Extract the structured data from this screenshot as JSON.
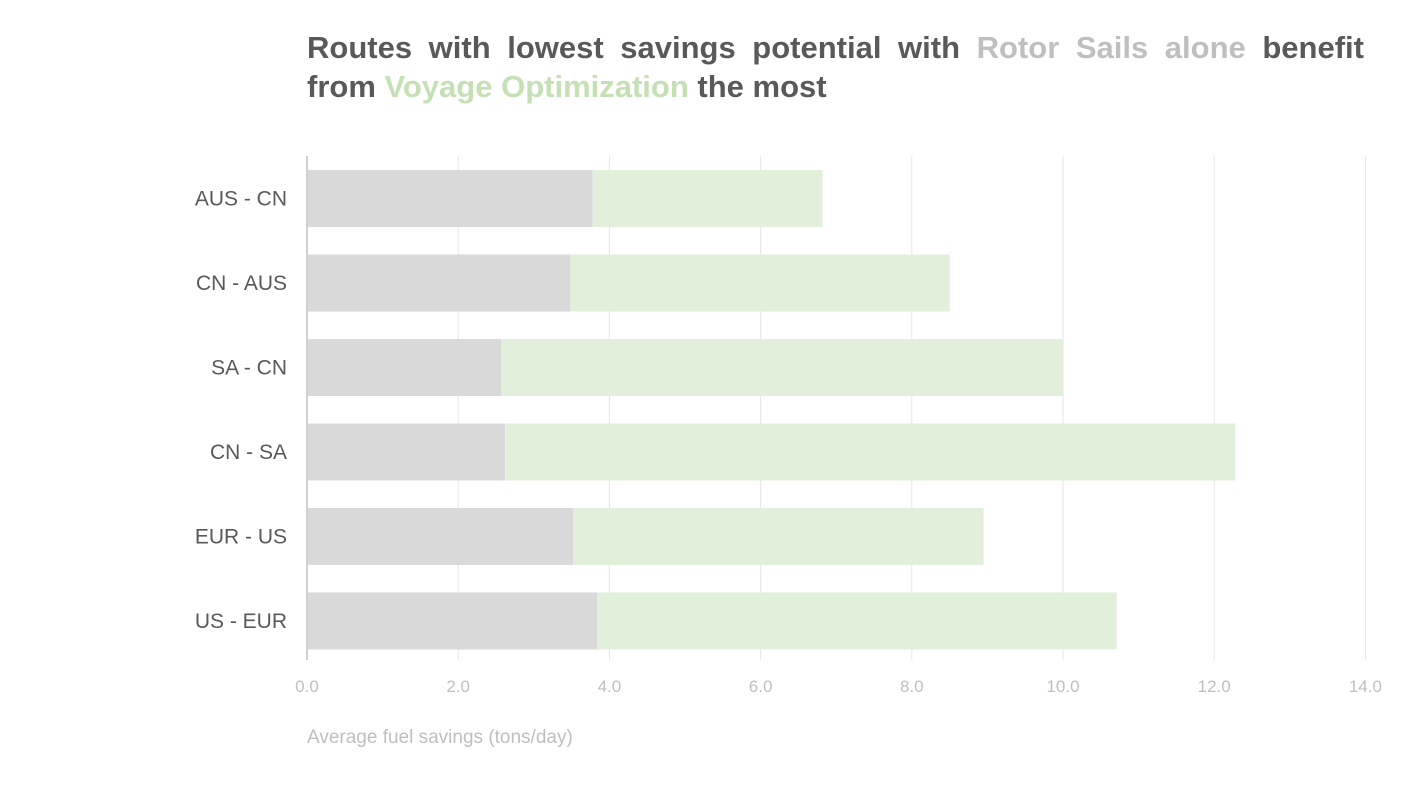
{
  "title": {
    "part1": "Routes with lowest savings potential with ",
    "highlight1": "Rotor Sails alone",
    "part2": " benefit from ",
    "highlight2": "Voyage Optimization",
    "part3": " the most"
  },
  "colors": {
    "rotor_sails": "#d9d9d9",
    "voyage_optimization": "#e2efda",
    "gridline": "#e6e6e6",
    "axis": "#d0d0d0"
  },
  "chart_data": {
    "type": "bar",
    "orientation": "horizontal",
    "stacked": true,
    "categories": [
      "AUS - CN",
      "CN - AUS",
      "SA - CN",
      "CN - SA",
      "EUR - US",
      "US - EUR"
    ],
    "series": [
      {
        "name": "Rotor Sails alone",
        "values": [
          3.78,
          3.48,
          2.57,
          2.62,
          3.52,
          3.84
        ]
      },
      {
        "name": "Voyage Optimization",
        "values": [
          3.04,
          5.02,
          7.43,
          9.66,
          5.43,
          6.87
        ]
      }
    ],
    "xlabel": "Average fuel savings (tons/day)",
    "ylabel": "",
    "xlim": [
      0,
      14
    ],
    "ticks": [
      "0.0",
      "2.0",
      "4.0",
      "6.0",
      "8.0",
      "10.0",
      "12.0",
      "14.0"
    ],
    "tick_values": [
      0,
      2,
      4,
      6,
      8,
      10,
      12,
      14
    ],
    "grid": true
  }
}
